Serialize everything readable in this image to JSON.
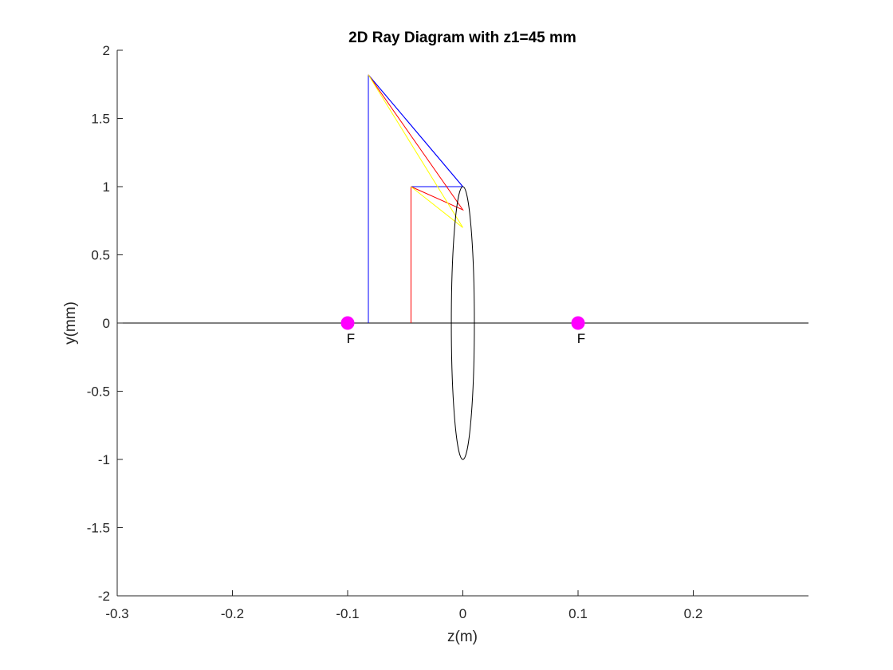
{
  "chart_data": {
    "type": "line",
    "title": "2D Ray Diagram with z1=45 mm",
    "xlabel": "z(m)",
    "ylabel": "y(mm)",
    "xlim": [
      -0.3,
      0.3
    ],
    "ylim": [
      -2,
      2
    ],
    "xticks": [
      -0.3,
      -0.2,
      -0.1,
      0,
      0.1,
      0.2
    ],
    "xtick_labels": [
      "-0.3",
      "-0.2",
      "-0.1",
      "0",
      "0.1",
      "0.2"
    ],
    "yticks": [
      -2,
      -1.5,
      -1,
      -0.5,
      0,
      0.5,
      1,
      1.5,
      2
    ],
    "ytick_labels": [
      "-2",
      "-1.5",
      "-1",
      "-0.5",
      "0",
      "0.5",
      "1",
      "1.5",
      "2"
    ],
    "grid": false,
    "series": [
      {
        "color": "#000000",
        "x": [
          -0.3,
          0.3
        ],
        "y": [
          0,
          0
        ]
      },
      {
        "color": "#ff0000",
        "x": [
          -0.045,
          -0.045
        ],
        "y": [
          0,
          1
        ]
      },
      {
        "color": "#0000ff",
        "x": [
          -0.082,
          -0.082
        ],
        "y": [
          0,
          1.82
        ]
      },
      {
        "color": "#0000ff",
        "x": [
          -0.045,
          0,
          -0.082
        ],
        "y": [
          1,
          1,
          1.82
        ]
      },
      {
        "color": "#0000ff",
        "x": [
          -0.082,
          0
        ],
        "y": [
          1.82,
          1
        ]
      },
      {
        "color": "#ff0000",
        "x": [
          -0.045,
          0,
          -0.082,
          0
        ],
        "y": [
          1,
          0.83,
          1.82,
          0.83
        ]
      },
      {
        "color": "#ffff00",
        "x": [
          -0.045,
          0,
          -0.082,
          0
        ],
        "y": [
          1,
          0.7,
          1.82,
          0.7
        ]
      }
    ],
    "lens": {
      "center": [
        0,
        0
      ],
      "half_width": 0.01,
      "half_height": 1,
      "color": "#000000"
    },
    "focal_points": [
      {
        "x": -0.1,
        "y": 0,
        "label": "F",
        "color": "#ff00ff"
      },
      {
        "x": 0.1,
        "y": 0,
        "label": "F",
        "color": "#ff00ff"
      }
    ]
  }
}
